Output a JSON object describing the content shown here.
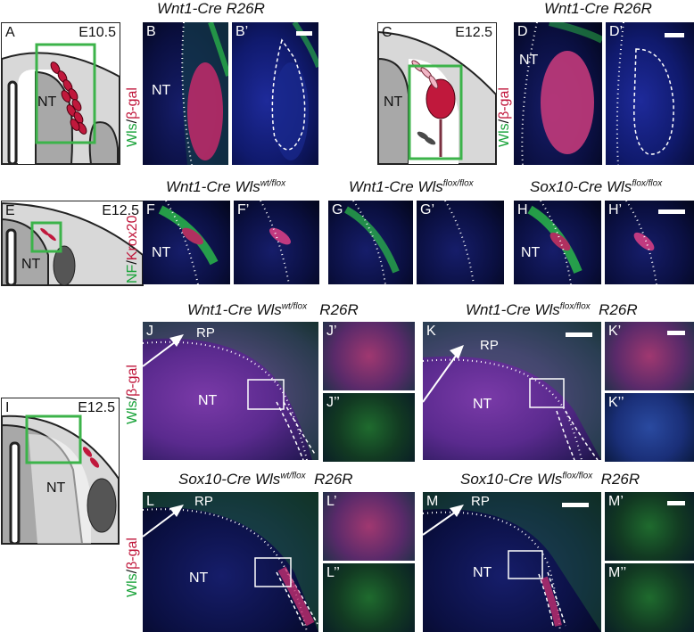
{
  "titles": {
    "row1_left": "Wnt1-Cre R26R",
    "row1_right": "Wnt1-Cre R26R",
    "row2_a_base": "Wnt1-Cre Wls",
    "row2_a_sup": "wt/flox",
    "row2_b_base": "Wnt1-Cre Wls",
    "row2_b_sup": "flox/flox",
    "row2_c_base": "Sox10-Cre Wls",
    "row2_c_sup": "flox/flox",
    "row3_a_base": "Wnt1-Cre Wls",
    "row3_a_sup": "wt/flox",
    "row3_a_tail": "R26R",
    "row3_b_base": "Wnt1-Cre Wls",
    "row3_b_sup": "flox/flox",
    "row3_b_tail": "R26R",
    "row4_a_base": "Sox10-Cre Wls",
    "row4_a_sup": "wt/flox",
    "row4_a_tail": "R26R",
    "row4_b_base": "Sox10-Cre Wls",
    "row4_b_sup": "flox/flox",
    "row4_b_tail": "R26R"
  },
  "panels": {
    "A": "A",
    "B": "B",
    "B2": "B’",
    "C": "C",
    "D": "D",
    "D2": "D’",
    "E": "E",
    "F": "F",
    "F2": "F’",
    "G": "G",
    "G2": "G’",
    "H": "H",
    "H2": "H’",
    "I": "I",
    "J": "J",
    "J2": "J’",
    "J3": "J’’",
    "K": "K",
    "K2": "K’",
    "K3": "K’’",
    "L": "L",
    "L2": "L’",
    "L3": "L’’",
    "M": "M",
    "M2": "M’",
    "M3": "M’’"
  },
  "stages": {
    "A": "E10.5",
    "C": "E12.5",
    "E": "E12.5",
    "I": "E12.5"
  },
  "labels": {
    "nt": "NT",
    "rp": "RP"
  },
  "side_labels": {
    "wls": "Wls",
    "slash": "/",
    "bgal": "β-gal",
    "nf": "NF",
    "krox": "Krox20"
  },
  "colors": {
    "green": "#1aa33a",
    "red": "#c0183c",
    "schematic_box": "#3cb34a"
  }
}
